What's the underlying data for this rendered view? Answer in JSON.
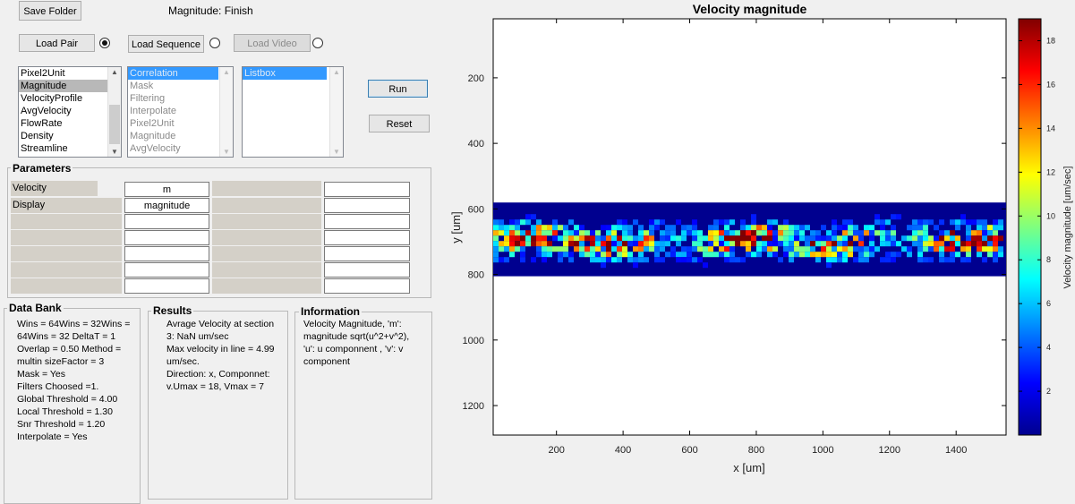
{
  "toolbar": {
    "save_folder": "Save Folder",
    "status": "Magnitude: Finish",
    "load_pair": "Load Pair",
    "load_sequence": "Load Sequence",
    "load_video": "Load Video",
    "run": "Run",
    "reset": "Reset"
  },
  "listbox1": {
    "items": [
      "Pixel2Unit",
      "Magnitude",
      "VelocityProfile",
      "AvgVelocity",
      "FlowRate",
      "Density",
      "Streamline"
    ],
    "selected": "Magnitude"
  },
  "listbox2": {
    "items": [
      "Correlation",
      "Mask",
      "Filtering",
      "Interpolate",
      "Pixel2Unit",
      "Magnitude",
      "AvgVelocity"
    ],
    "selected": "Correlation"
  },
  "listbox3": {
    "items": [
      "Listbox"
    ],
    "selected": "Listbox"
  },
  "parameters": {
    "title": "Parameters",
    "rows": [
      {
        "label": "Velocity Component",
        "value": "m"
      },
      {
        "label": "Display",
        "value": "magnitude"
      }
    ]
  },
  "databank": {
    "title": "Data Bank",
    "lines": [
      "Wins = 64Wins = 32Wins =",
      "64Wins = 32  DeltaT = 1",
      "Overlap = 0.50  Method =",
      "multin  sizeFactor = 3",
      "Mask = Yes",
      "Filters Choosed =1.",
      "Global Threshold = 4.00",
      "Local Threshold = 1.30",
      "Snr Threshold = 1.20",
      "Interpolate = Yes"
    ]
  },
  "results": {
    "title": "Results",
    "lines": [
      "Avrage Velocity at section",
      "3: NaN um/sec",
      "Max velocity in line = 4.99",
      "um/sec.",
      "Direction: x,  Componnet:",
      "v.Umax = 18, Vmax = 7"
    ]
  },
  "information": {
    "title": "Information",
    "lines": [
      "Velocity Magnitude, 'm':",
      "magnitude sqrt(u^2+v^2),",
      "'u': u componnent , 'v': v",
      "component"
    ]
  },
  "chart_data": {
    "type": "heatmap",
    "title": "Velocity magnitude",
    "xlabel": "x [um]",
    "ylabel": "y [um]",
    "xticks": [
      200,
      400,
      600,
      800,
      1000,
      1200,
      1400
    ],
    "yticks": [
      200,
      400,
      600,
      800,
      1000,
      1200
    ],
    "xlim": [
      10,
      1550
    ],
    "ylim": [
      20,
      1290
    ],
    "y_reversed": true,
    "colorbar": {
      "label": "Velocity magnitude [um/sec]",
      "ticks": [
        2,
        4,
        6,
        8,
        10,
        12,
        14,
        16,
        18
      ],
      "range": [
        0,
        19
      ],
      "colormap": "jet"
    },
    "field_extent_x": [
      10,
      1550
    ],
    "field_extent_y": [
      575,
      800
    ],
    "max_value": 18
  }
}
